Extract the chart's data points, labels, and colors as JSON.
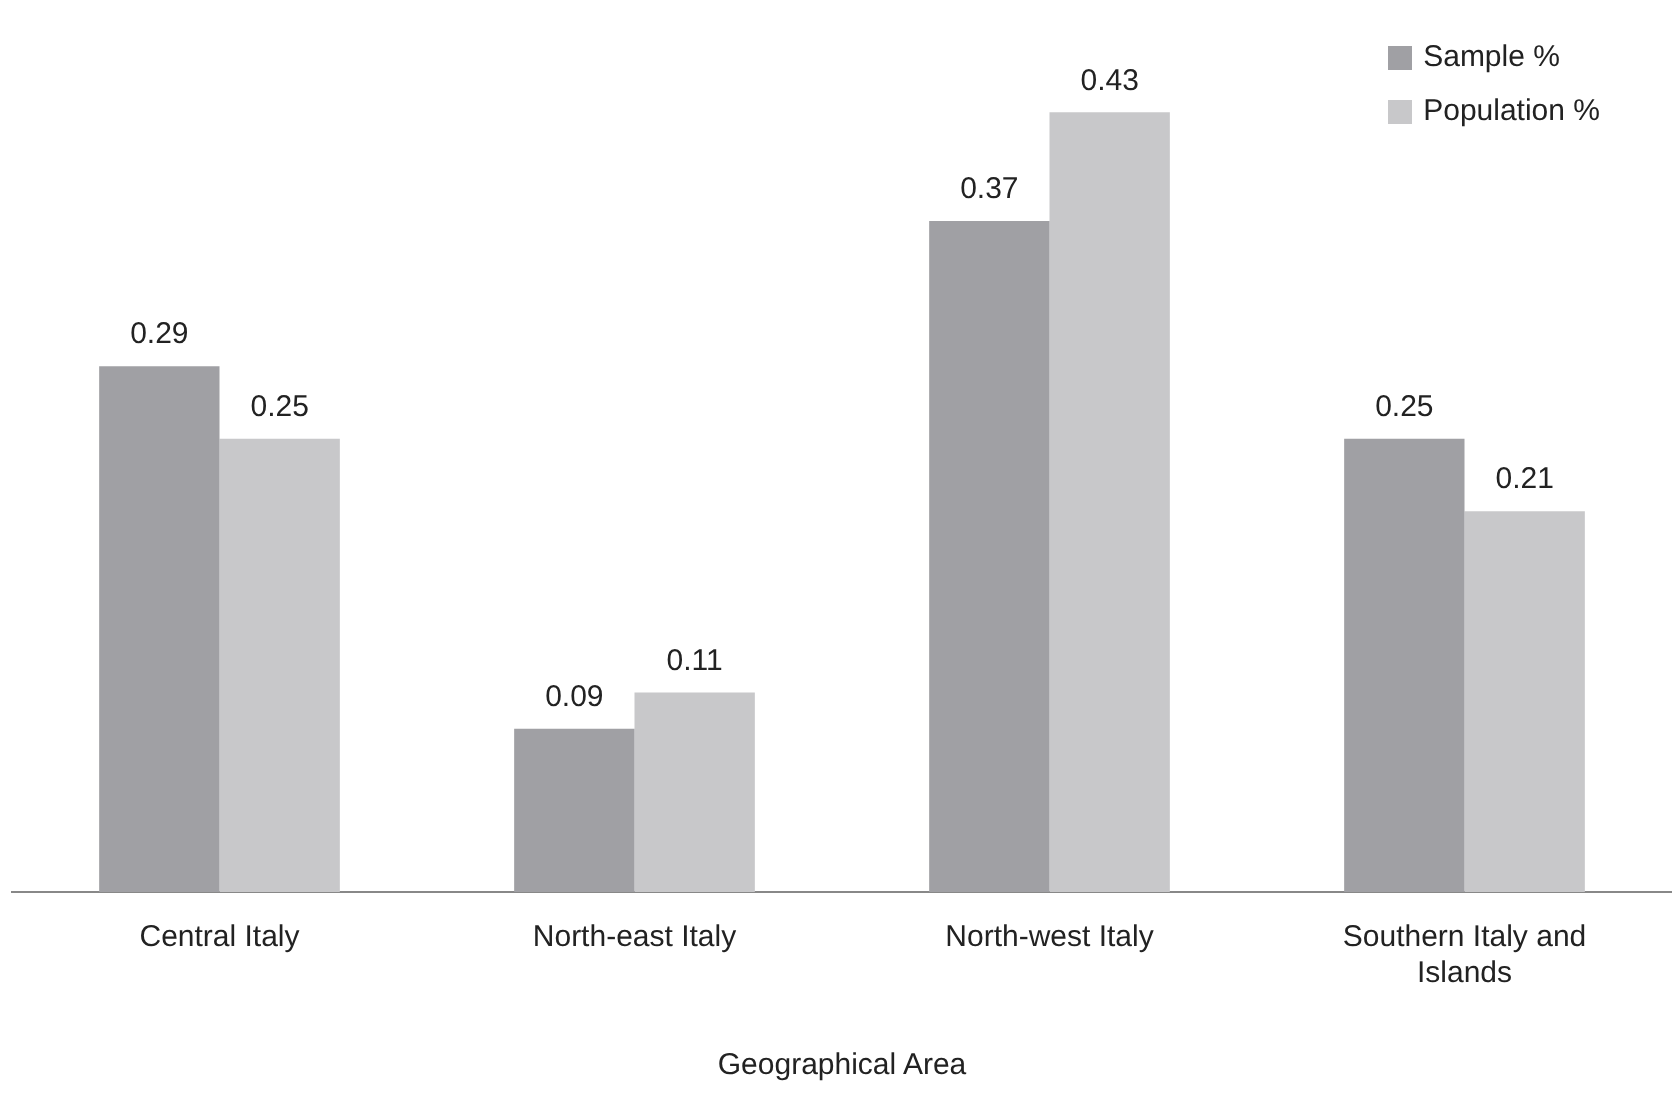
{
  "chart_data": {
    "type": "bar",
    "xlabel": "Geographical Area",
    "categories": [
      "Central Italy",
      "North-east Italy",
      "North-west Italy",
      "Southern Italy and Islands"
    ],
    "series": [
      {
        "name": "Sample %",
        "color": "#a0a0a4",
        "values": [
          0.29,
          0.09,
          0.37,
          0.25
        ]
      },
      {
        "name": "Population %",
        "color": "#c8c8ca",
        "values": [
          0.25,
          0.11,
          0.43,
          0.21
        ]
      }
    ],
    "data_labels": true,
    "legend": "top right",
    "grid": false
  }
}
